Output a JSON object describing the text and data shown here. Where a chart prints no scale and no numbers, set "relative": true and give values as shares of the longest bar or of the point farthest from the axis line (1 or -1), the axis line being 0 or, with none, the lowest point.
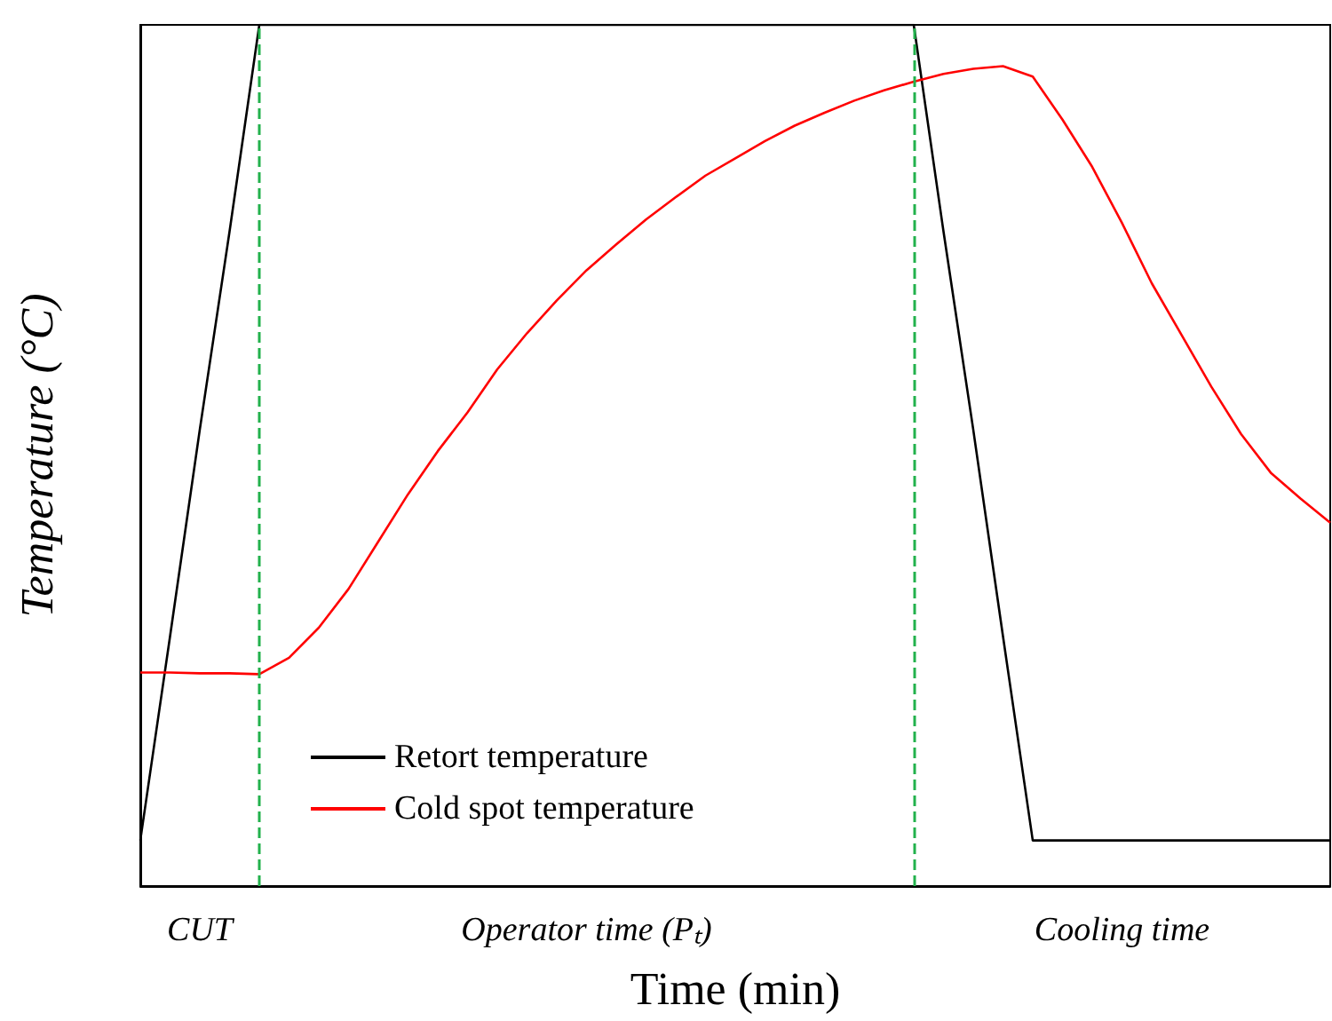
{
  "chart_data": {
    "type": "line",
    "relative": true,
    "xlabel": "Time (min)",
    "ylabel": "Temperature (°C)",
    "categories": [
      null,
      null,
      null,
      null,
      null,
      null,
      null,
      null,
      null,
      null,
      null,
      null,
      null,
      null,
      null,
      null,
      null,
      null,
      null,
      null,
      null,
      null,
      null,
      null,
      null,
      null,
      null,
      null,
      null,
      null,
      null,
      null,
      null,
      null,
      null,
      null,
      null,
      null,
      null,
      null,
      null
    ],
    "tick_labels": false,
    "grid": false,
    "legend": "bottom left",
    "marker": "none",
    "line_style": "solid",
    "series": [
      {
        "name": "Retort temperature",
        "color": "#000000",
        "values": [
          0.053,
          0.29,
          0.53,
          0.76,
          1.0,
          1.0,
          1.0,
          1.0,
          1.0,
          1.0,
          1.0,
          1.0,
          1.0,
          1.0,
          1.0,
          1.0,
          1.0,
          1.0,
          1.0,
          1.0,
          1.0,
          1.0,
          1.0,
          1.0,
          1.0,
          1.0,
          1.0,
          0.76,
          0.53,
          0.29,
          0.053,
          0.053,
          0.053,
          0.053,
          0.053,
          0.053,
          0.053,
          0.053,
          0.053,
          0.053,
          0.053
        ]
      },
      {
        "name": "Cold spot temperature",
        "color": "#ff0000",
        "values": [
          0.248,
          0.248,
          0.247,
          0.247,
          0.246,
          0.265,
          0.3,
          0.345,
          0.4,
          0.455,
          0.505,
          0.55,
          0.6,
          0.642,
          0.68,
          0.715,
          0.745,
          0.774,
          0.8,
          0.825,
          0.845,
          0.865,
          0.883,
          0.898,
          0.912,
          0.924,
          0.934,
          0.943,
          0.949,
          0.952,
          0.94,
          0.89,
          0.835,
          0.77,
          0.7,
          0.64,
          0.58,
          0.525,
          0.48,
          0.45,
          0.422
        ]
      }
    ],
    "annotations": [
      "CUT",
      "Operator time (Pₜ)",
      "Cooling time"
    ]
  }
}
